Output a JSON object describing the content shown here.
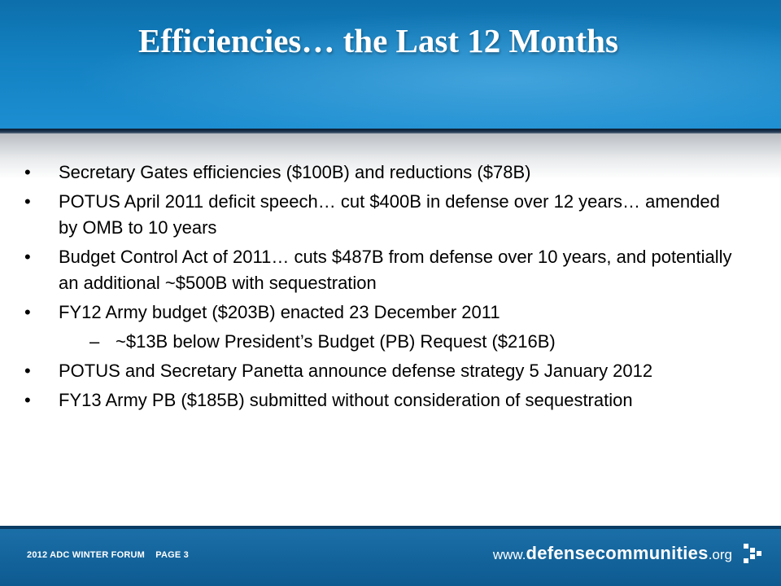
{
  "slide": {
    "title": "Efficiencies… the Last 12 Months",
    "bullets": [
      {
        "text": "Secretary Gates efficiencies ($100B) and reductions ($78B)"
      },
      {
        "text": "POTUS April 2011 deficit speech… cut $400B in defense over 12 years… amended by OMB to 10 years"
      },
      {
        "text": "Budget Control Act of 2011… cuts $487B from defense over 10 years, and potentially an additional ~$500B with sequestration"
      },
      {
        "text": "FY12 Army budget ($203B) enacted 23 December 2011"
      },
      {
        "text": "~$13B below President’s Budget (PB) Request ($216B)"
      },
      {
        "text": "POTUS and Secretary Panetta announce defense strategy 5 January 2012"
      },
      {
        "text": "FY13 Army PB ($185B) submitted without consideration of sequestration"
      }
    ],
    "bullet_glyph": "•",
    "sub_glyph": "–"
  },
  "footer": {
    "event": "2012 ADC WINTER FORUM",
    "page": "PAGE 3",
    "website_www": "www.",
    "website_domain": "defensecommunities",
    "website_tld": ".org",
    "logo_icon": "arrow-pixel-logo-icon"
  },
  "colors": {
    "header_blue": "#1381c2",
    "footer_blue": "#0d5a90",
    "text": "#000000"
  }
}
